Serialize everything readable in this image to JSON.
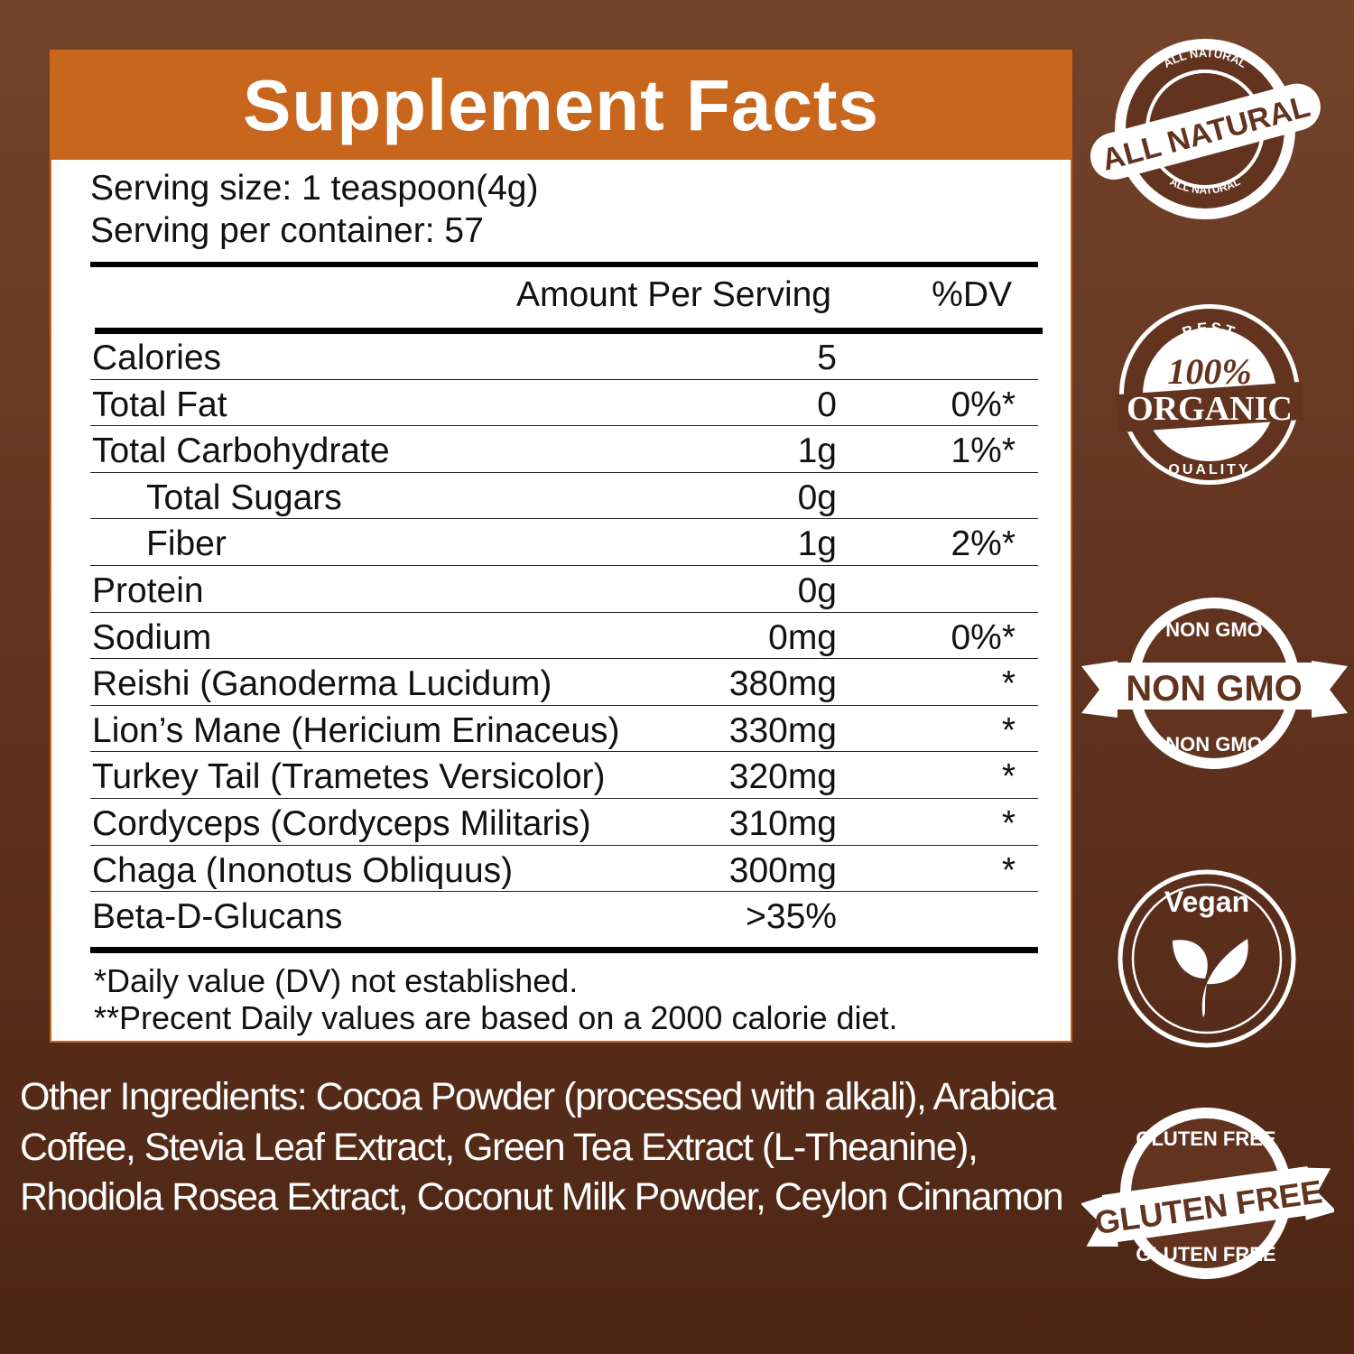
{
  "panel": {
    "title": "Supplement Facts",
    "serving_size": "Serving size: 1 teaspoon(4g)",
    "servings_per_container": "Serving per container: 57",
    "col_amount": "Amount Per Serving",
    "col_dv": "%DV",
    "rows": [
      {
        "label": "Calories",
        "amount": "5",
        "dv": "",
        "indent": false
      },
      {
        "label": "Total Fat",
        "amount": "0",
        "dv": "0%*",
        "indent": false
      },
      {
        "label": "Total Carbohydrate",
        "amount": "1g",
        "dv": "1%*",
        "indent": false
      },
      {
        "label": "Total Sugars",
        "amount": "0g",
        "dv": "",
        "indent": true
      },
      {
        "label": "Fiber",
        "amount": "1g",
        "dv": "2%*",
        "indent": true
      },
      {
        "label": "Protein",
        "amount": "0g",
        "dv": "",
        "indent": false
      },
      {
        "label": "Sodium",
        "amount": "0mg",
        "dv": "0%*",
        "indent": false
      },
      {
        "label": "Reishi (Ganoderma Lucidum)",
        "amount": "380mg",
        "dv": "*",
        "indent": false
      },
      {
        "label": "Lion’s Mane (Hericium Erinaceus)",
        "amount": "330mg",
        "dv": "*",
        "indent": false
      },
      {
        "label": "Turkey Tail (Trametes Versicolor)",
        "amount": "320mg",
        "dv": "*",
        "indent": false
      },
      {
        "label": "Cordyceps (Cordyceps Militaris)",
        "amount": "310mg",
        "dv": "*",
        "indent": false
      },
      {
        "label": "Chaga (Inonotus Obliquus)",
        "amount": "300mg",
        "dv": "*",
        "indent": false
      },
      {
        "label": "Beta-D-Glucans",
        "amount": ">35%",
        "dv": "",
        "indent": false
      }
    ],
    "footnote1": "*Daily value (DV) not established.",
    "footnote2": "**Precent Daily values are based  on a 2000 calorie diet."
  },
  "other_ingredients": "Other Ingredients: Cocoa Powder (processed with alkali), Arabica Coffee, Stevia Leaf Extract, Green Tea Extract (L-Theanine), Rhodiola Rosea Extract, Coconut Milk Powder, Ceylon Cinnamon",
  "badges": {
    "all_natural": {
      "top": "ALL NATURAL",
      "main": "ALL NATURAL",
      "bottom": "ALL NATURAL"
    },
    "organic": {
      "top": "BEST",
      "line1": "100%",
      "line2": "ORGANIC",
      "bottom": "QUALITY"
    },
    "non_gmo": {
      "top": "NON GMO",
      "main": "NON GMO",
      "bottom": "NON GMO"
    },
    "vegan": {
      "main": "Vegan",
      "icon": "leaf-icon"
    },
    "gluten_free": {
      "top": "GLUTEN FREE",
      "main": "GLUTEN FREE",
      "bottom": "GLUTEN FREE"
    }
  },
  "colors": {
    "accent": "#c8661e",
    "background": "#623420",
    "badge": "#ffffff"
  }
}
